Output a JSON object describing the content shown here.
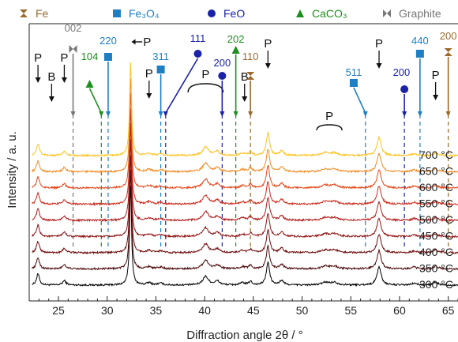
{
  "legend": [
    {
      "label": "Fe",
      "marker": "bowtie-v",
      "color": "#9a6a2e"
    },
    {
      "label": "Fe₃O₄",
      "marker": "square",
      "color": "#1f7fc4"
    },
    {
      "label": "FeO",
      "marker": "circle",
      "color": "#1a22a8"
    },
    {
      "label": "CaCO₃",
      "marker": "triangle",
      "color": "#1e8e1e"
    },
    {
      "label": "Graphite",
      "marker": "bowtie-h",
      "color": "#777777"
    }
  ],
  "chart_data": {
    "type": "line",
    "xlabel": "Diffraction angle 2θ / °",
    "ylabel": "Intensity / a. u.",
    "xlim": [
      22,
      66
    ],
    "x_ticks": [
      25,
      30,
      35,
      40,
      45,
      50,
      55,
      60,
      65
    ],
    "series": [
      {
        "name": "300 °C",
        "color": "#000000"
      },
      {
        "name": "350 °C",
        "color": "#4a0a0a"
      },
      {
        "name": "400 °C",
        "color": "#6e0b0b"
      },
      {
        "name": "450 °C",
        "color": "#8f1414"
      },
      {
        "name": "500 °C",
        "color": "#b01c1c"
      },
      {
        "name": "550 °C",
        "color": "#cc2a1c"
      },
      {
        "name": "600 °C",
        "color": "#e5481a"
      },
      {
        "name": "650 °C",
        "color": "#f48a20"
      },
      {
        "name": "700 °C",
        "color": "#ffc21f"
      }
    ],
    "peaks": [
      {
        "x": 22.9,
        "h": 26,
        "w": 0.18
      },
      {
        "x": 25.6,
        "h": 10,
        "w": 0.22
      },
      {
        "x": 32.4,
        "h": 230,
        "w": 0.12
      },
      {
        "x": 34.3,
        "h": 5,
        "w": 0.3
      },
      {
        "x": 35.5,
        "h": 4,
        "w": 0.3
      },
      {
        "x": 40.1,
        "h": 20,
        "w": 0.35
      },
      {
        "x": 41.3,
        "h": 9,
        "w": 0.3
      },
      {
        "x": 43.9,
        "h": 5,
        "w": 0.3
      },
      {
        "x": 44.7,
        "h": 8,
        "w": 0.2
      },
      {
        "x": 46.5,
        "h": 52,
        "w": 0.2
      },
      {
        "x": 47.9,
        "h": 10,
        "w": 0.25
      },
      {
        "x": 52.4,
        "h": 6,
        "w": 0.45
      },
      {
        "x": 53.3,
        "h": 6,
        "w": 0.45
      },
      {
        "x": 57.9,
        "h": 42,
        "w": 0.25
      },
      {
        "x": 61.5,
        "h": 4,
        "w": 0.3
      },
      {
        "x": 63.7,
        "h": 6,
        "w": 0.3
      }
    ],
    "annotations": [
      {
        "kind": "P",
        "x": 22.9,
        "label": "P"
      },
      {
        "kind": "P",
        "x": 25.6,
        "label": "P"
      },
      {
        "kind": "P",
        "x": 34.3,
        "label": "P"
      },
      {
        "kind": "P",
        "x": 40.1,
        "label": "P"
      },
      {
        "kind": "P",
        "x": 46.5,
        "label": "P"
      },
      {
        "kind": "P",
        "x": 57.9,
        "label": "P"
      },
      {
        "kind": "P",
        "x": 63.7,
        "label": "P"
      },
      {
        "kind": "P",
        "x": 52.8,
        "label": "P"
      },
      {
        "kind": "B",
        "x": 24.3,
        "label": "B"
      },
      {
        "kind": "B",
        "x": 44.1,
        "label": "B"
      },
      {
        "kind": "Graphite",
        "x": 26.5,
        "label": "002"
      },
      {
        "kind": "Fe3O4",
        "x": 30.1,
        "label": "220"
      },
      {
        "kind": "CaCO3",
        "x": 29.4,
        "label": "104"
      },
      {
        "kind": "Fe3O4",
        "x": 35.5,
        "label": "311"
      },
      {
        "kind": "FeO",
        "x": 36.0,
        "label": "111"
      },
      {
        "kind": "FeO",
        "x": 41.8,
        "label": "200"
      },
      {
        "kind": "CaCO3",
        "x": 43.2,
        "label": "202"
      },
      {
        "kind": "Fe",
        "x": 44.7,
        "label": "110"
      },
      {
        "kind": "Fe3O4",
        "x": 56.5,
        "label": "511"
      },
      {
        "kind": "FeO",
        "x": 60.5,
        "label": "200"
      },
      {
        "kind": "Fe3O4",
        "x": 62.1,
        "label": "440"
      },
      {
        "kind": "Fe",
        "x": 65.0,
        "label": "200"
      }
    ],
    "p_arrow_label": "P"
  }
}
